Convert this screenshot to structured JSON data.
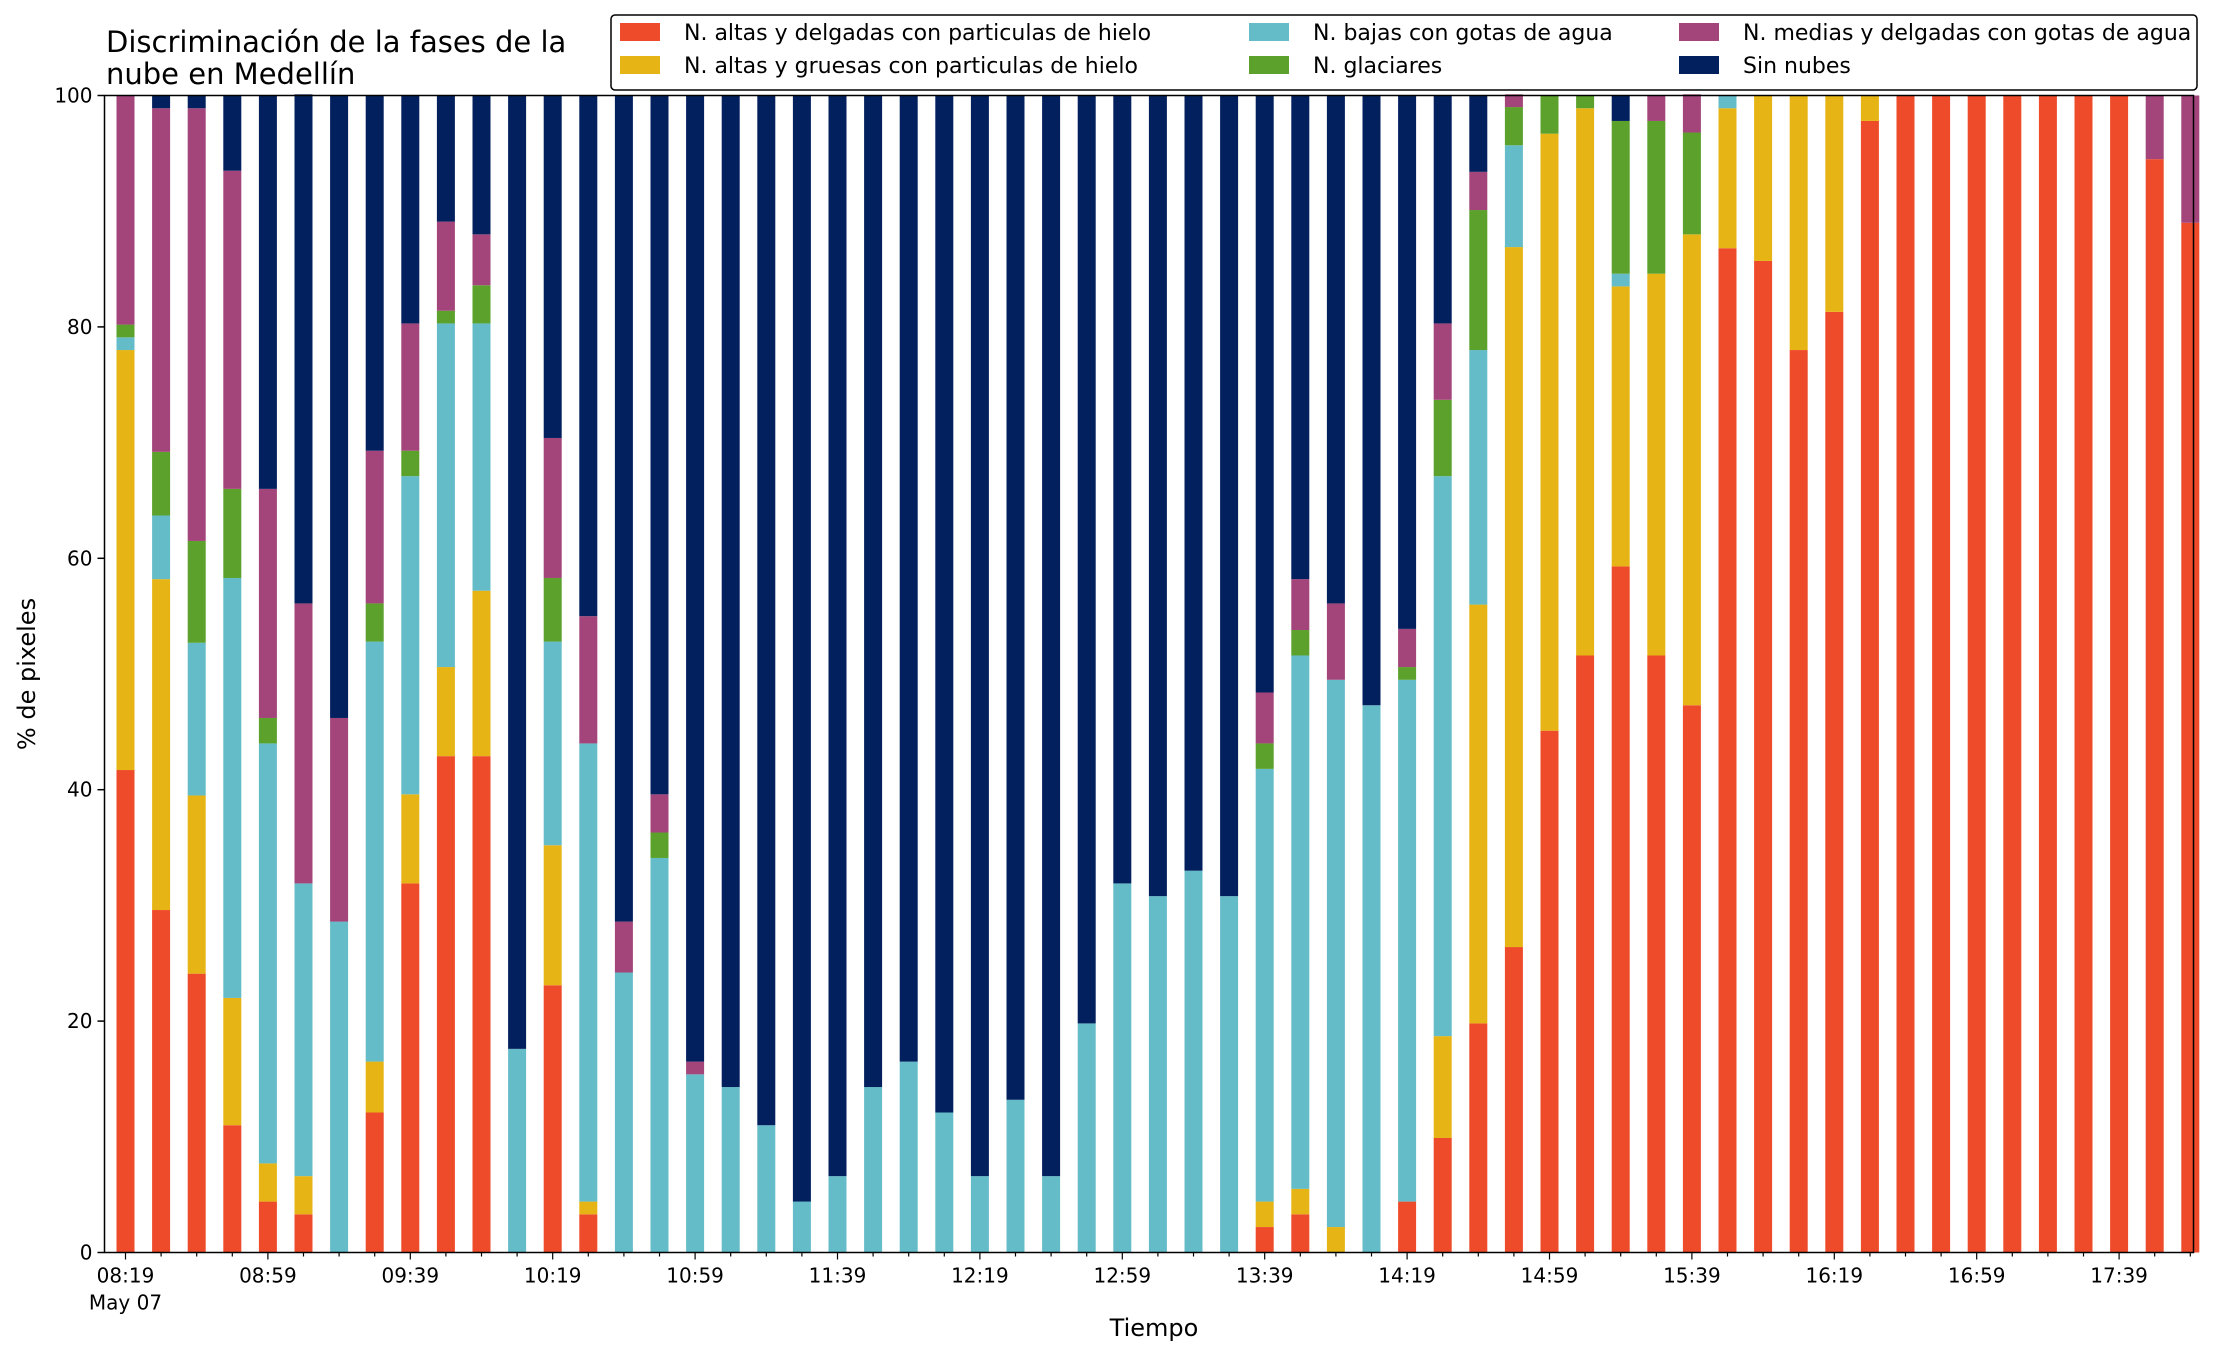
{
  "chart_data": {
    "type": "bar",
    "stacked": true,
    "title_lines": [
      "Discriminación de la fases de la",
      "nube en Medellín"
    ],
    "xlabel": "Tiempo",
    "ylabel": "% de pixeles",
    "ylim": [
      0,
      100
    ],
    "yticks": [
      "0",
      "20",
      "40",
      "60",
      "80",
      "100"
    ],
    "xtick_labels": [
      {
        "index": 0,
        "label": "08:19",
        "sub": "May 07"
      },
      {
        "index": 4,
        "label": "08:59"
      },
      {
        "index": 8,
        "label": "09:39"
      },
      {
        "index": 12,
        "label": "10:19"
      },
      {
        "index": 16,
        "label": "10:59"
      },
      {
        "index": 20,
        "label": "11:39"
      },
      {
        "index": 24,
        "label": "12:19"
      },
      {
        "index": 28,
        "label": "12:59"
      },
      {
        "index": 32,
        "label": "13:39"
      },
      {
        "index": 36,
        "label": "14:19"
      },
      {
        "index": 40,
        "label": "14:59"
      },
      {
        "index": 44,
        "label": "15:39"
      },
      {
        "index": 48,
        "label": "16:19"
      },
      {
        "index": 52,
        "label": "16:59"
      },
      {
        "index": 56,
        "label": "17:39"
      }
    ],
    "legend_position": "top-right",
    "grid": false,
    "series": [
      {
        "name": "N. altas y delgadas con particulas de hielo",
        "color": "#ee4b2b",
        "values": [
          41.7,
          29.6,
          24.1,
          11.0,
          4.4,
          3.3,
          0,
          12.1,
          31.9,
          42.9,
          42.9,
          0,
          23.1,
          3.3,
          0,
          0,
          0,
          0,
          0,
          0,
          0,
          0,
          0,
          0,
          0,
          0,
          0,
          0,
          0,
          0,
          0,
          0,
          2.2,
          3.3,
          0,
          0,
          4.4,
          9.9,
          19.8,
          26.4,
          45.1,
          51.6,
          59.3,
          51.6,
          47.3,
          86.8,
          85.7,
          78.0,
          81.3,
          97.8,
          100,
          100,
          100,
          100,
          100,
          100,
          100,
          94.5,
          89.0
        ]
      },
      {
        "name": "N. altas y gruesas con particulas de hielo",
        "color": "#e6b515",
        "values": [
          36.3,
          28.6,
          15.4,
          11.0,
          3.3,
          3.3,
          0,
          4.4,
          7.7,
          7.7,
          14.3,
          0,
          12.1,
          1.1,
          0,
          0,
          0,
          0,
          0,
          0,
          0,
          0,
          0,
          0,
          0,
          0,
          0,
          0,
          0,
          0,
          0,
          0,
          2.2,
          2.2,
          2.2,
          0,
          0,
          8.8,
          36.2,
          60.5,
          51.6,
          47.3,
          24.2,
          33.0,
          40.7,
          12.1,
          14.3,
          22.0,
          18.7,
          2.2,
          0,
          0,
          0,
          0,
          0,
          0,
          0,
          0,
          0
        ]
      },
      {
        "name": "N. bajas con gotas de agua",
        "color": "#64bcc8",
        "values": [
          1.1,
          5.5,
          13.2,
          36.3,
          36.3,
          25.3,
          28.6,
          36.3,
          27.5,
          29.7,
          23.1,
          17.6,
          17.6,
          39.6,
          24.2,
          34.1,
          15.4,
          14.3,
          11.0,
          4.4,
          6.6,
          14.3,
          16.5,
          12.1,
          6.6,
          13.2,
          6.6,
          19.8,
          31.9,
          30.8,
          33.0,
          30.8,
          37.4,
          46.1,
          47.3,
          47.3,
          45.1,
          48.4,
          22.0,
          8.8,
          0,
          0,
          1.1,
          0,
          0,
          1.1,
          0,
          0,
          0,
          0,
          0,
          0,
          0,
          0,
          0,
          0,
          0,
          0,
          0
        ]
      },
      {
        "name": "N. glaciares",
        "color": "#5ba12b",
        "values": [
          1.1,
          5.5,
          8.8,
          7.7,
          2.2,
          0,
          0,
          3.3,
          2.2,
          1.1,
          3.3,
          0,
          5.5,
          0,
          0,
          2.2,
          0,
          0,
          0,
          0,
          0,
          0,
          0,
          0,
          0,
          0,
          0,
          0,
          0,
          0,
          0,
          0,
          2.2,
          2.2,
          0,
          0,
          1.1,
          6.6,
          12.1,
          3.3,
          3.3,
          1.1,
          13.2,
          13.2,
          8.8,
          0,
          0,
          0,
          0,
          0,
          0,
          0,
          0,
          0,
          0,
          0,
          0,
          0,
          0
        ]
      },
      {
        "name": "N. medias y delgadas con gotas de agua",
        "color": "#a3447a",
        "values": [
          19.8,
          29.7,
          37.4,
          27.5,
          19.8,
          24.2,
          17.6,
          13.2,
          11.0,
          7.7,
          4.4,
          0,
          12.1,
          11.0,
          4.4,
          3.3,
          1.1,
          0,
          0,
          0,
          0,
          0,
          0,
          0,
          0,
          0,
          0,
          0,
          0,
          0,
          0,
          0,
          4.4,
          4.4,
          6.6,
          0,
          3.3,
          6.6,
          3.3,
          1.1,
          0,
          0,
          0,
          2.2,
          3.3,
          0,
          0,
          0,
          0,
          0,
          0,
          0,
          0,
          0,
          0,
          0,
          0,
          5.5,
          11.0
        ]
      },
      {
        "name": "Sin nubes",
        "color": "#02205d",
        "values": [
          0,
          1.1,
          1.1,
          6.5,
          34.0,
          44.0,
          53.8,
          30.7,
          19.7,
          10.9,
          12.0,
          82.4,
          29.6,
          45.0,
          71.4,
          60.4,
          83.5,
          85.7,
          89.0,
          95.6,
          93.4,
          85.7,
          83.5,
          87.9,
          93.4,
          86.8,
          93.4,
          80.2,
          68.1,
          69.2,
          67.0,
          69.2,
          51.6,
          41.8,
          43.9,
          52.7,
          46.1,
          19.7,
          6.6,
          0,
          0,
          0,
          2.2,
          0,
          0,
          0,
          0,
          0,
          0,
          0,
          0,
          0,
          0,
          0,
          0,
          0,
          0,
          0,
          0
        ]
      }
    ]
  }
}
